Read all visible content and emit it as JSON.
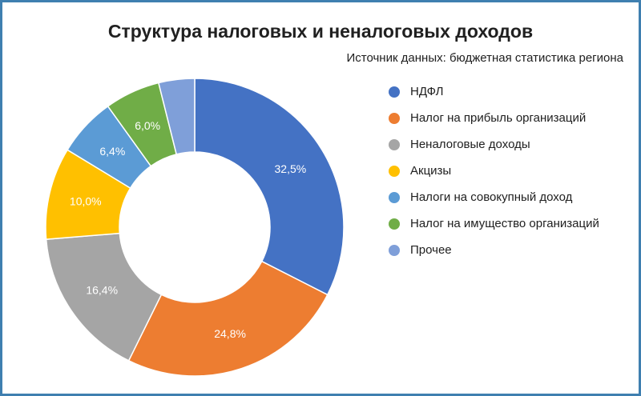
{
  "chart_data": {
    "type": "pie",
    "title": "Структура налоговых и неналоговых доходов",
    "subtitle": "Источник данных: бюджетная статистика региона",
    "hole": true,
    "legend_position": "right",
    "slices": [
      {
        "label": "НДФЛ",
        "value": 32.5,
        "value_label": "32,5%",
        "color": "#4472c4"
      },
      {
        "label": "Налог на прибыль организаций",
        "value": 24.8,
        "value_label": "24,8%",
        "color": "#ed7d31"
      },
      {
        "label": "Неналоговые доходы",
        "value": 16.4,
        "value_label": "16,4%",
        "color": "#a5a5a5"
      },
      {
        "label": "Акцизы",
        "value": 10.0,
        "value_label": "10,0%",
        "color": "#ffc000"
      },
      {
        "label": "Налоги на совокупный доход",
        "value": 6.4,
        "value_label": "6,4%",
        "color": "#5b9bd5"
      },
      {
        "label": "Налог на имущество организаций",
        "value": 6.0,
        "value_label": "6,0%",
        "color": "#70ad47"
      },
      {
        "label": "Прочее",
        "value": 3.9,
        "value_label": "",
        "color": "#7f9fd9"
      }
    ]
  }
}
